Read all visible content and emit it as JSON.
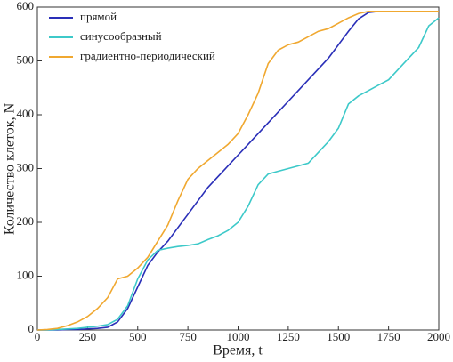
{
  "chart_data": {
    "type": "line",
    "xlabel": "Время, t",
    "ylabel": "Количество клеток, N",
    "x": [
      0,
      50,
      100,
      150,
      200,
      250,
      300,
      350,
      400,
      450,
      500,
      550,
      600,
      650,
      700,
      750,
      800,
      850,
      900,
      950,
      1000,
      1050,
      1100,
      1150,
      1200,
      1250,
      1300,
      1350,
      1400,
      1450,
      1500,
      1550,
      1600,
      1650,
      1700,
      1750,
      1800,
      1850,
      1900,
      1950,
      2000
    ],
    "series": [
      {
        "name": "прямой",
        "color": "#2a2fb8",
        "values": [
          0,
          0,
          0,
          1,
          1,
          2,
          3,
          5,
          15,
          40,
          80,
          120,
          145,
          165,
          190,
          215,
          240,
          265,
          285,
          305,
          325,
          345,
          365,
          385,
          405,
          425,
          445,
          465,
          485,
          505,
          530,
          555,
          578,
          590,
          592,
          592,
          592,
          592,
          592,
          592,
          592
        ]
      },
      {
        "name": "синусообразный",
        "color": "#3dc9c9",
        "values": [
          0,
          0,
          1,
          2,
          3,
          5,
          7,
          10,
          20,
          45,
          95,
          130,
          148,
          152,
          155,
          157,
          160,
          168,
          175,
          185,
          200,
          230,
          270,
          290,
          295,
          300,
          305,
          310,
          330,
          350,
          375,
          420,
          435,
          445,
          455,
          465,
          485,
          505,
          525,
          565,
          580
        ]
      },
      {
        "name": "градиентно-периодический",
        "color": "#f0a830",
        "values": [
          0,
          1,
          3,
          8,
          15,
          25,
          40,
          60,
          95,
          100,
          115,
          135,
          165,
          195,
          240,
          280,
          300,
          315,
          330,
          345,
          365,
          400,
          440,
          495,
          520,
          530,
          535,
          545,
          555,
          560,
          570,
          580,
          588,
          592,
          592,
          592,
          592,
          592,
          592,
          592,
          592
        ]
      }
    ],
    "xlim": [
      0,
      2000
    ],
    "xticks": [
      0,
      250,
      500,
      750,
      1000,
      1250,
      1500,
      1750,
      2000
    ],
    "ylim": [
      0,
      600
    ],
    "yticks": [
      0,
      100,
      200,
      300,
      400,
      500,
      600
    ],
    "legend": "upper left"
  }
}
